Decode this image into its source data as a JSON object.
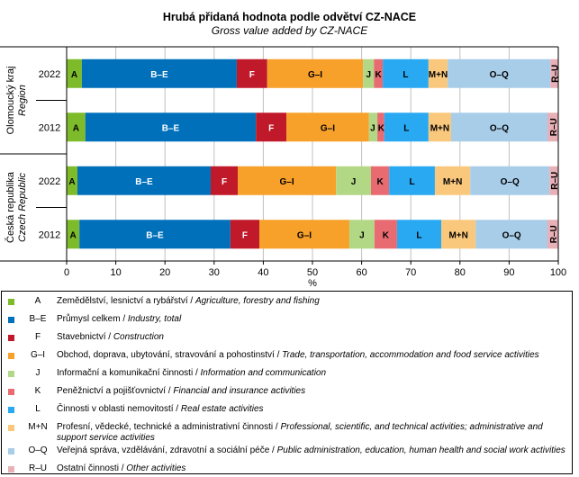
{
  "chart_data": {
    "type": "bar",
    "orientation": "horizontal",
    "stacked": true,
    "title": "Hrubá přidaná hodnota podle odvětví CZ-NACE",
    "subtitle": "Gross value added by CZ-NACE",
    "xlabel": "%",
    "ylabel": "",
    "xlim": [
      0,
      100
    ],
    "x_ticks": [
      "0",
      "10",
      "20",
      "30",
      "40",
      "50",
      "60",
      "70",
      "80",
      "90",
      "100"
    ],
    "grid": true,
    "groups": [
      {
        "label_cs": "Olomoucký kraj",
        "label_en": "Region",
        "years": [
          "2022",
          "2012"
        ]
      },
      {
        "label_cs": "Česká republika",
        "label_en": "Czech Republic",
        "years": [
          "2022",
          "2012"
        ]
      }
    ],
    "categories": [
      "Olomoucký kraj 2022",
      "Olomoucký kraj 2012",
      "Česká republika 2022",
      "Česká republika 2012"
    ],
    "series": [
      {
        "name": "A",
        "color": "#7dbb2b",
        "label_color": "#000000",
        "values": [
          3.1,
          3.8,
          2.2,
          2.6
        ]
      },
      {
        "name": "B–E",
        "color": "#0070bb",
        "label_color": "#ffffff",
        "values": [
          31.5,
          34.7,
          27.1,
          30.7
        ]
      },
      {
        "name": "F",
        "color": "#c0192a",
        "label_color": "#ffffff",
        "values": [
          6.2,
          6.2,
          5.5,
          5.9
        ]
      },
      {
        "name": "G–I",
        "color": "#f7a02a",
        "label_color": "#000000",
        "values": [
          19.5,
          16.8,
          20.0,
          18.3
        ]
      },
      {
        "name": "J",
        "color": "#b2d886",
        "label_color": "#000000",
        "values": [
          2.2,
          1.7,
          7.1,
          5.1
        ]
      },
      {
        "name": "K",
        "color": "#e96b72",
        "label_color": "#000000",
        "values": [
          1.8,
          1.4,
          3.7,
          4.6
        ]
      },
      {
        "name": "L",
        "color": "#29a9f2",
        "label_color": "#000000",
        "values": [
          9.3,
          9.0,
          9.3,
          9.0
        ]
      },
      {
        "name": "M+N",
        "color": "#fac87d",
        "label_color": "#000000",
        "values": [
          3.9,
          4.6,
          7.2,
          7.0
        ]
      },
      {
        "name": "O–Q",
        "color": "#a8cde9",
        "label_color": "#000000",
        "values": [
          20.9,
          19.6,
          16.1,
          14.6
        ]
      },
      {
        "name": "R–U",
        "color": "#e8b0b7",
        "label_color": "#000000",
        "values": [
          1.6,
          2.2,
          1.8,
          2.2
        ]
      }
    ]
  },
  "legend": [
    {
      "code": "A",
      "cs": "Zemědělství, lesnictví a rybářství / ",
      "en": "Agriculture, forestry and fishing"
    },
    {
      "code": "B–E",
      "cs": "Průmysl celkem / ",
      "en": "Industry, total"
    },
    {
      "code": "F",
      "cs": "Stavebnictví / ",
      "en": "Construction"
    },
    {
      "code": "G–I",
      "cs": "Obchod, doprava, ubytování, stravování a pohostinství / ",
      "en": "Trade, transportation, accommodation and food service activities"
    },
    {
      "code": "J",
      "cs": "Informační a komunikační činnosti / ",
      "en": "Information and communication"
    },
    {
      "code": "K",
      "cs": "Peněžnictví a pojišťovnictví / ",
      "en": "Financial and insurance activities"
    },
    {
      "code": "L",
      "cs": "Činnosti v oblasti nemovitostí / ",
      "en": "Real estate activities"
    },
    {
      "code": "M+N",
      "cs": "Profesní, vědecké, technické a administrativní činnosti / ",
      "en": "Professional, scientific, and technical activities; administrative and support service activities"
    },
    {
      "code": "O–Q",
      "cs": "Veřejná správa, vzdělávání, zdravotní a sociální péče / ",
      "en": "Public administration, education, human health and social work activities"
    },
    {
      "code": "R–U",
      "cs": "Ostatní činnosti / ",
      "en": "Other activities"
    }
  ]
}
